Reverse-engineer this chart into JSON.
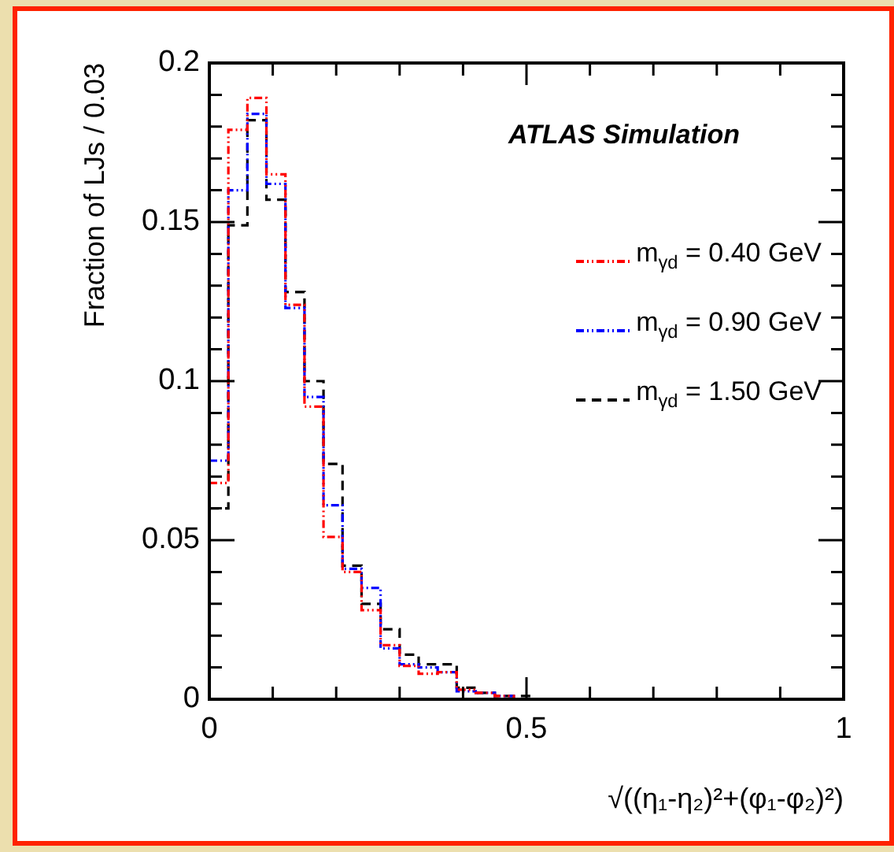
{
  "chart_data": {
    "type": "histogram",
    "xlabel": "√((η₁-η₂)²+(φ₁-φ₂)²)",
    "ylabel": "Fraction of LJs / 0.03",
    "annotations": [
      "ATLAS Simulation"
    ],
    "bins": [
      0,
      0.03,
      0.06,
      0.09,
      0.12,
      0.15,
      0.18,
      0.21,
      0.24,
      0.27,
      0.3,
      0.33,
      0.36,
      0.39,
      0.42,
      0.45,
      0.48,
      0.51
    ],
    "series": [
      {
        "name": "m$_{γd}$ = 0.40 GeV",
        "color": "#ff0000",
        "line_style": "dotted",
        "values": [
          0.068,
          0.179,
          0.189,
          0.165,
          0.124,
          0.092,
          0.051,
          0.04,
          0.028,
          0.017,
          0.0105,
          0.008,
          0.0085,
          0.003,
          0.002,
          0.001,
          0
        ]
      },
      {
        "name": "m$_{γd}$ = 0.90 GeV",
        "color": "#0000ff",
        "line_style": "dotted",
        "values": [
          0.075,
          0.16,
          0.184,
          0.162,
          0.123,
          0.095,
          0.061,
          0.041,
          0.035,
          0.016,
          0.011,
          0.01,
          0.0085,
          0.0025,
          0.002,
          0.001,
          0
        ]
      },
      {
        "name": "m$_{γd}$ = 1.50 GeV",
        "color": "#000000",
        "line_style": "dashed",
        "values": [
          0.06,
          0.149,
          0.182,
          0.157,
          0.128,
          0.1,
          0.074,
          0.042,
          0.03,
          0.022,
          0.014,
          0.011,
          0.011,
          0.0036,
          0.002,
          0.001,
          0.001
        ]
      }
    ],
    "xlim": [
      0,
      1
    ],
    "xticks": [
      0,
      {
        "value": 0.1,
        "label": null
      },
      {
        "value": 0.2,
        "label": null
      },
      {
        "value": 0.3,
        "label": null
      },
      {
        "value": 0.4,
        "label": null
      },
      0.5,
      {
        "value": 0.6,
        "label": null
      },
      {
        "value": 0.7,
        "label": null
      },
      {
        "value": 0.8,
        "label": null
      },
      {
        "value": 0.9,
        "label": null
      },
      1
    ],
    "ylim": [
      0,
      0.2
    ],
    "yticks": [
      0,
      {
        "value": 0.01,
        "label": null
      },
      {
        "value": 0.02,
        "label": null
      },
      {
        "value": 0.03,
        "label": null
      },
      {
        "value": 0.04,
        "label": null
      },
      0.05,
      {
        "value": 0.06,
        "label": null
      },
      {
        "value": 0.07,
        "label": null
      },
      {
        "value": 0.08,
        "label": null
      },
      {
        "value": 0.09,
        "label": null
      },
      0.1,
      {
        "value": 0.11,
        "label": null
      },
      {
        "value": 0.12,
        "label": null
      },
      {
        "value": 0.13,
        "label": null
      },
      {
        "value": 0.14,
        "label": null
      },
      0.15,
      {
        "value": 0.16,
        "label": null
      },
      {
        "value": 0.17,
        "label": null
      },
      {
        "value": 0.18,
        "label": null
      },
      {
        "value": 0.19,
        "label": null
      },
      0.2
    ],
    "legend": "top right",
    "grid": false
  }
}
